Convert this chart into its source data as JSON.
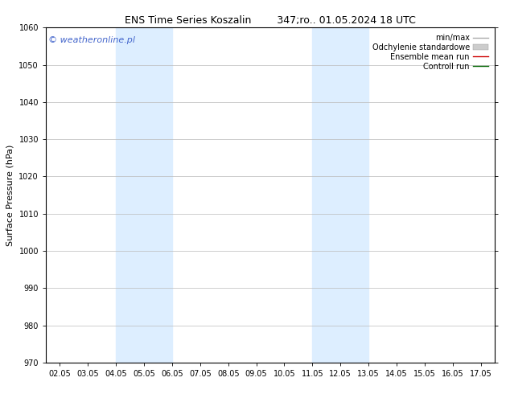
{
  "title": "ENS Time Series Koszalin        347;ro.. 01.05.2024 18 UTC",
  "ylabel": "Surface Pressure (hPa)",
  "ylim": [
    970,
    1060
  ],
  "yticks": [
    970,
    980,
    990,
    1000,
    1010,
    1020,
    1030,
    1040,
    1050,
    1060
  ],
  "xtick_labels": [
    "02.05",
    "03.05",
    "04.05",
    "05.05",
    "06.05",
    "07.05",
    "08.05",
    "09.05",
    "10.05",
    "11.05",
    "12.05",
    "13.05",
    "14.05",
    "15.05",
    "16.05",
    "17.05"
  ],
  "xtick_positions": [
    0,
    1,
    2,
    3,
    4,
    5,
    6,
    7,
    8,
    9,
    10,
    11,
    12,
    13,
    14,
    15
  ],
  "shaded_bands": [
    {
      "x_start": 2,
      "x_end": 4,
      "color": "#ddeeff"
    },
    {
      "x_start": 9,
      "x_end": 11,
      "color": "#ddeeff"
    }
  ],
  "legend_entries": [
    {
      "label": "min/max",
      "color": "#aaaaaa",
      "lw": 1.0,
      "ls": "-",
      "type": "line"
    },
    {
      "label": "Odchylenie standardowe",
      "color": "#cccccc",
      "lw": 8,
      "ls": "-",
      "type": "patch"
    },
    {
      "label": "Ensemble mean run",
      "color": "#cc0000",
      "lw": 1.0,
      "ls": "-",
      "type": "line"
    },
    {
      "label": "Controll run",
      "color": "#006600",
      "lw": 1.0,
      "ls": "-",
      "type": "line"
    }
  ],
  "watermark": "© weatheronline.pl",
  "watermark_color": "#4466cc",
  "background_color": "#ffffff",
  "plot_bg_color": "#ffffff",
  "title_fontsize": 9,
  "tick_fontsize": 7,
  "ylabel_fontsize": 8,
  "legend_fontsize": 7,
  "watermark_fontsize": 8,
  "xlim": [
    -0.5,
    15.5
  ],
  "grid_color": "#bbbbbb"
}
